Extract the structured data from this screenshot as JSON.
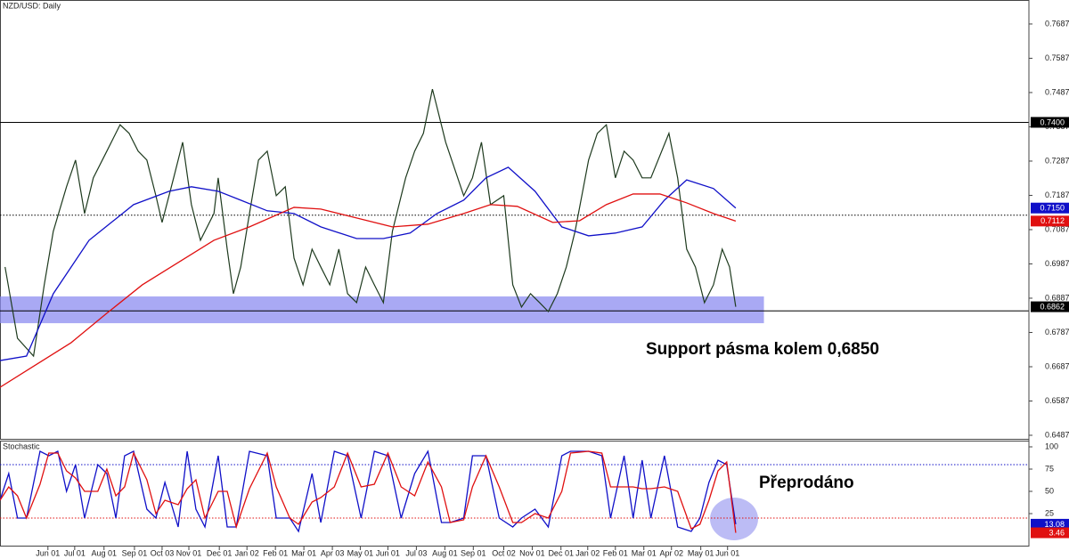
{
  "chart_data": [
    {
      "type": "line",
      "title": "NZD/USD: Daily",
      "xlim": [
        -0.7,
        35.8
      ],
      "ylim": [
        0.6474,
        0.7757
      ],
      "yticks": [
        0.7687,
        0.7587,
        0.7487,
        0.7387,
        0.7287,
        0.7187,
        0.7087,
        0.6987,
        0.6887,
        0.6787,
        0.6687,
        0.6587,
        0.6487
      ],
      "series": [
        {
          "color": "#1e3a1e",
          "x": [
            -0.52,
            -0.08,
            0.49,
            0.87,
            1.19,
            1.66,
            1.98,
            2.3,
            2.61,
            3.09,
            3.56,
            3.88,
            4.2,
            4.51,
            4.83,
            5.05,
            5.46,
            5.78,
            6.09,
            6.41,
            6.89,
            7.04,
            7.36,
            7.58,
            7.84,
            8.15,
            8.47,
            8.78,
            9.1,
            9.42,
            9.73,
            10.05,
            10.37,
            10.68,
            11.0,
            11.32,
            11.63,
            11.95,
            12.27,
            12.58,
            12.9,
            13.22,
            13.69,
            14.01,
            14.32,
            14.64,
            14.8,
            15.11,
            15.43,
            15.75,
            16.06,
            16.38,
            16.7,
            17.17,
            17.33,
            17.49,
            17.8,
            18.12,
            18.44,
            18.75,
            19.07,
            19.39,
            19.7,
            20.18,
            20.49,
            20.81,
            21.13,
            21.44,
            21.76,
            22.08,
            22.39,
            23.03,
            23.34,
            23.66,
            23.97,
            24.29,
            24.61,
            24.92,
            25.18,
            25.4
          ],
          "values": [
            0.6978,
            0.677,
            0.6718,
            0.6926,
            0.7082,
            0.7212,
            0.729,
            0.7134,
            0.7238,
            0.7316,
            0.7393,
            0.7368,
            0.7316,
            0.729,
            0.7186,
            0.7108,
            0.7238,
            0.7342,
            0.716,
            0.7056,
            0.7134,
            0.7238,
            0.703,
            0.69,
            0.6978,
            0.7134,
            0.729,
            0.7316,
            0.7186,
            0.7212,
            0.7004,
            0.6926,
            0.703,
            0.6978,
            0.6926,
            0.703,
            0.69,
            0.6874,
            0.6978,
            0.6926,
            0.6874,
            0.7082,
            0.7238,
            0.7316,
            0.7368,
            0.7497,
            0.7445,
            0.7342,
            0.7264,
            0.7186,
            0.7238,
            0.7342,
            0.716,
            0.7186,
            0.7056,
            0.6926,
            0.6861,
            0.69,
            0.6874,
            0.6848,
            0.69,
            0.6978,
            0.7082,
            0.729,
            0.7368,
            0.7393,
            0.7238,
            0.7316,
            0.729,
            0.7238,
            0.7238,
            0.7368,
            0.7238,
            0.703,
            0.6978,
            0.6874,
            0.6926,
            0.703,
            0.6978,
            0.6862
          ]
        },
        {
          "color": "#1010c8",
          "x": [
            -0.7,
            0.24,
            1.19,
            2.46,
            4.04,
            5.3,
            6.09,
            7.04,
            7.84,
            8.78,
            9.73,
            10.68,
            11.95,
            12.9,
            13.85,
            14.8,
            15.75,
            16.54,
            17.33,
            18.28,
            19.23,
            20.18,
            21.13,
            22.08,
            22.87,
            23.66,
            24.61,
            25.4
          ],
          "values": [
            0.6705,
            0.6718,
            0.69,
            0.7056,
            0.716,
            0.7199,
            0.7212,
            0.7199,
            0.7173,
            0.7142,
            0.7134,
            0.7095,
            0.7061,
            0.7061,
            0.7077,
            0.7134,
            0.7173,
            0.7238,
            0.7269,
            0.7199,
            0.7095,
            0.7069,
            0.7077,
            0.7095,
            0.7173,
            0.7232,
            0.7207,
            0.715
          ]
        },
        {
          "color": "#e01010",
          "x": [
            -0.7,
            0.56,
            1.82,
            3.09,
            4.35,
            5.62,
            6.89,
            8.15,
            9.73,
            10.68,
            11.95,
            13.22,
            14.48,
            15.75,
            16.7,
            17.65,
            18.91,
            19.86,
            20.81,
            21.76,
            22.71,
            23.66,
            24.61,
            25.4
          ],
          "values": [
            0.6627,
            0.6692,
            0.6757,
            0.6843,
            0.6926,
            0.6991,
            0.7056,
            0.7095,
            0.7152,
            0.7147,
            0.7121,
            0.7095,
            0.7103,
            0.7134,
            0.716,
            0.7155,
            0.7108,
            0.7113,
            0.716,
            0.7191,
            0.7191,
            0.7165,
            0.7134,
            0.7112
          ]
        }
      ],
      "zones": [
        {
          "ylim": [
            0.6814,
            0.6892
          ],
          "xlim": [
            -0.7,
            26.4
          ],
          "color": "#8c8cf0"
        }
      ],
      "levels": [
        {
          "value": 0.74,
          "style": "solid",
          "color": "#000000"
        },
        {
          "value": 0.7129,
          "style": "dotted",
          "color": "#000000"
        },
        {
          "value": 0.685,
          "style": "solid",
          "color": "#000000"
        }
      ],
      "tags": [
        {
          "value": 0.74,
          "label": "0.7400",
          "color": "#000000"
        },
        {
          "value": 0.715,
          "label": "0.7150",
          "color": "#1010c8"
        },
        {
          "value": 0.7112,
          "label": "0.7112",
          "color": "#e01010"
        },
        {
          "value": 0.6862,
          "label": "0.6862",
          "color": "#000000"
        }
      ],
      "annotations": [
        "Support pásma kolem 0,6850"
      ]
    },
    {
      "type": "line",
      "title": "Stochastic",
      "xlim": [
        -0.7,
        35.8
      ],
      "ylim": [
        -12,
        107
      ],
      "yticks": [
        100,
        75,
        50,
        25
      ],
      "xticks": [
        {
          "value": 1,
          "label": "Jun 01"
        },
        {
          "value": 1.95,
          "label": "Jul 01"
        },
        {
          "value": 2.99,
          "label": "Aug 01"
        },
        {
          "value": 4.07,
          "label": "Sep 01"
        },
        {
          "value": 5.05,
          "label": "Oct 03"
        },
        {
          "value": 6.0,
          "label": "Nov 01"
        },
        {
          "value": 7.08,
          "label": "Dec 01"
        },
        {
          "value": 8.06,
          "label": "Jan 02"
        },
        {
          "value": 9.07,
          "label": "Feb 01"
        },
        {
          "value": 10.08,
          "label": "Mar 01"
        },
        {
          "value": 11.09,
          "label": "Apr 03"
        },
        {
          "value": 12.08,
          "label": "May 01"
        },
        {
          "value": 13.06,
          "label": "Jun 01"
        },
        {
          "value": 14.07,
          "label": "Jul 03"
        },
        {
          "value": 15.08,
          "label": "Aug 01"
        },
        {
          "value": 16.09,
          "label": "Sep 01"
        },
        {
          "value": 17.17,
          "label": "Oct 02"
        },
        {
          "value": 18.18,
          "label": "Nov 01"
        },
        {
          "value": 19.2,
          "label": "Dec 01"
        },
        {
          "value": 20.15,
          "label": "Jan 02"
        },
        {
          "value": 21.13,
          "label": "Feb 01"
        },
        {
          "value": 22.14,
          "label": "Mar 01"
        },
        {
          "value": 23.12,
          "label": "Apr 02"
        },
        {
          "value": 24.16,
          "label": "May 01"
        },
        {
          "value": 25.11,
          "label": "Jun 01"
        }
      ],
      "series": [
        {
          "color": "#1010c8",
          "x": [
            -0.7,
            -0.39,
            -0.08,
            0.24,
            0.72,
            1.03,
            1.35,
            1.66,
            1.98,
            2.3,
            2.77,
            3.09,
            3.41,
            3.72,
            4.04,
            4.51,
            4.83,
            5.15,
            5.62,
            5.94,
            6.25,
            6.57,
            7.04,
            7.36,
            7.68,
            8.15,
            8.78,
            9.1,
            9.58,
            9.89,
            10.37,
            10.68,
            11.16,
            11.63,
            12.11,
            12.58,
            13.06,
            13.53,
            14.01,
            14.48,
            14.96,
            15.27,
            15.75,
            16.06,
            16.54,
            17.01,
            17.49,
            17.8,
            18.28,
            18.75,
            19.23,
            19.54,
            20.18,
            20.65,
            20.96,
            21.44,
            21.76,
            22.08,
            22.39,
            22.87,
            23.34,
            23.82,
            24.13,
            24.45,
            24.77,
            25.08,
            25.4
          ],
          "values": [
            40,
            70,
            20,
            20,
            95,
            90,
            95,
            50,
            80,
            20,
            80,
            70,
            20,
            90,
            95,
            30,
            20,
            60,
            10,
            95,
            30,
            10,
            90,
            10,
            10,
            95,
            90,
            20,
            20,
            5,
            70,
            15,
            95,
            90,
            20,
            95,
            90,
            20,
            70,
            95,
            15,
            15,
            20,
            90,
            90,
            20,
            10,
            20,
            30,
            10,
            90,
            95,
            95,
            90,
            20,
            90,
            20,
            85,
            20,
            90,
            10,
            5,
            20,
            60,
            85,
            80,
            13.08
          ]
        },
        {
          "color": "#e01010",
          "x": [
            -0.7,
            -0.39,
            -0.08,
            0.24,
            0.72,
            1.03,
            1.35,
            1.66,
            1.98,
            2.3,
            2.77,
            3.09,
            3.41,
            3.72,
            4.04,
            4.51,
            4.83,
            5.15,
            5.62,
            5.94,
            6.25,
            6.57,
            7.04,
            7.36,
            7.68,
            8.15,
            8.78,
            9.1,
            9.58,
            9.89,
            10.37,
            10.68,
            11.16,
            11.63,
            12.11,
            12.58,
            13.06,
            13.53,
            14.01,
            14.48,
            14.96,
            15.27,
            15.75,
            16.06,
            16.54,
            17.01,
            17.49,
            17.8,
            18.28,
            18.75,
            19.23,
            19.54,
            20.18,
            20.65,
            20.96,
            21.44,
            21.76,
            22.08,
            22.39,
            22.87,
            23.34,
            23.82,
            24.13,
            24.45,
            24.77,
            25.08,
            25.4
          ],
          "values": [
            40,
            55,
            45,
            20,
            58,
            93,
            93,
            73,
            65,
            50,
            50,
            75,
            45,
            55,
            93,
            63,
            25,
            40,
            35,
            53,
            63,
            20,
            50,
            50,
            10,
            53,
            93,
            55,
            20,
            13,
            38,
            43,
            55,
            93,
            55,
            58,
            93,
            55,
            45,
            83,
            55,
            15,
            18,
            55,
            90,
            55,
            15,
            15,
            25,
            20,
            50,
            93,
            95,
            93,
            55,
            55,
            55,
            53,
            53,
            55,
            50,
            8,
            13,
            40,
            73,
            83,
            3.46
          ]
        }
      ],
      "levels": [
        {
          "value": 80,
          "style": "dotted",
          "color": "#1010c8"
        },
        {
          "value": 20,
          "style": "dotted",
          "color": "#e01010"
        }
      ],
      "tags": [
        {
          "value": 13.08,
          "color": "#1010c8"
        },
        {
          "value": 3.46,
          "color": "#e01010"
        }
      ],
      "annotations": [
        "Přeprodáno"
      ]
    }
  ]
}
